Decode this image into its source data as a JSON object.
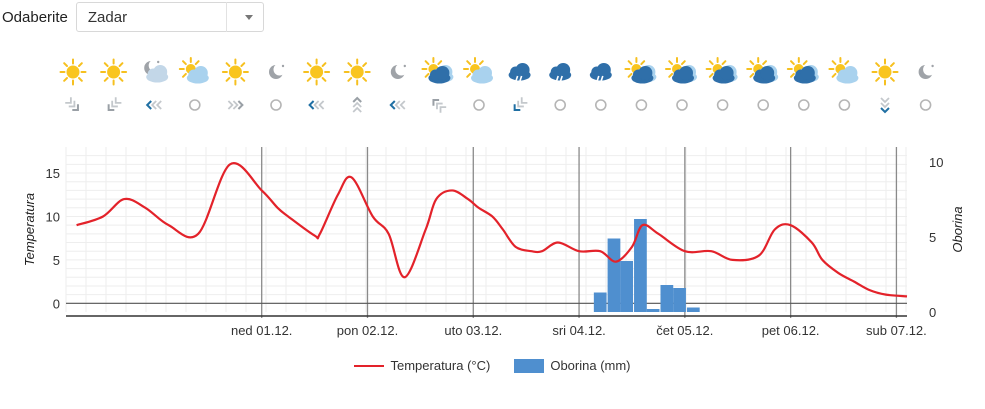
{
  "location_picker": {
    "label": "Odaberite",
    "selected": "Zadar"
  },
  "forecast_strip": {
    "weather_icons": [
      "sun-icon",
      "sun-icon",
      "moon-cloud-icon",
      "sun-cloud-icon",
      "sun-icon",
      "moon-icon",
      "sun-icon",
      "sun-icon",
      "moon-icon",
      "sun-cloud-dark-icon",
      "sun-cloud-icon",
      "rain-cloud-icon",
      "rain-cloud-icon",
      "rain-cloud-icon",
      "sun-cloud-dark-icon",
      "sun-cloud-dark-icon",
      "sun-cloud-dark-icon",
      "sun-cloud-dark-icon",
      "sun-cloud-dark-icon",
      "sun-cloud-icon",
      "sun-icon",
      "moon-icon"
    ],
    "wind_icons": [
      {
        "type": "arrow",
        "dir": "southeast",
        "strong": false
      },
      {
        "type": "arrow",
        "dir": "southwest",
        "strong": false
      },
      {
        "type": "arrow",
        "dir": "west",
        "strong": true
      },
      {
        "type": "calm"
      },
      {
        "type": "arrow",
        "dir": "east",
        "strong": false
      },
      {
        "type": "calm"
      },
      {
        "type": "arrow",
        "dir": "west",
        "strong": true
      },
      {
        "type": "arrow",
        "dir": "north",
        "strong": false
      },
      {
        "type": "arrow",
        "dir": "west",
        "strong": true
      },
      {
        "type": "arrow",
        "dir": "northwest",
        "strong": false
      },
      {
        "type": "calm"
      },
      {
        "type": "arrow",
        "dir": "southwest",
        "strong": true
      },
      {
        "type": "calm"
      },
      {
        "type": "calm"
      },
      {
        "type": "calm"
      },
      {
        "type": "calm"
      },
      {
        "type": "calm"
      },
      {
        "type": "calm"
      },
      {
        "type": "calm"
      },
      {
        "type": "calm"
      },
      {
        "type": "arrow",
        "dir": "south",
        "strong": true
      },
      {
        "type": "calm"
      }
    ]
  },
  "chart_data": {
    "type": "line",
    "left_axis": {
      "label": "Temperatura",
      "ticks": [
        0,
        5,
        10,
        15
      ],
      "range": [
        -1,
        18
      ]
    },
    "right_axis": {
      "label": "Oborina",
      "ticks": [
        0,
        5,
        10
      ],
      "range": [
        0,
        11
      ]
    },
    "day_labels": [
      "ned 01.12.",
      "pon 02.12.",
      "uto 03.12.",
      "sri 04.12.",
      "čet 05.12.",
      "pet 06.12.",
      "sub 07.12."
    ],
    "x_range": [
      -1.85,
      6.1
    ],
    "series": [
      {
        "name": "Temperatura (°C)",
        "kind": "line",
        "color": "#e3222a",
        "x": [
          -1.75,
          -1.5,
          -1.3,
          -1.1,
          -0.88,
          -0.6,
          -0.3,
          0,
          0.15,
          0.25,
          0.5,
          0.55,
          0.72,
          0.85,
          1.05,
          1.2,
          1.35,
          1.55,
          1.65,
          1.8,
          1.95,
          2.05,
          2.18,
          2.28,
          2.4,
          2.55,
          2.65,
          2.8,
          3.0,
          3.2,
          3.35,
          3.5,
          3.6,
          3.75,
          4.0,
          4.25,
          4.45,
          4.7,
          4.85,
          5.0,
          5.2,
          5.3,
          5.45,
          5.6,
          5.75,
          5.9,
          6.1
        ],
        "y": [
          9,
          10,
          12,
          11,
          9,
          8,
          16,
          13,
          11,
          10,
          7.8,
          8,
          12.5,
          14.5,
          10,
          8,
          3,
          8.5,
          12,
          13,
          12,
          11,
          10,
          8.5,
          6.5,
          6,
          6,
          7,
          6,
          6,
          4.8,
          6.5,
          9,
          8,
          6,
          6,
          5,
          5.5,
          8.5,
          9,
          7,
          5,
          3.5,
          2.5,
          1.5,
          1,
          0.8
        ]
      },
      {
        "name": "Oborina (mm)",
        "kind": "bar",
        "color": "#4f8fcf",
        "x": [
          3.2,
          3.33,
          3.45,
          3.58,
          3.7,
          3.83,
          3.95,
          4.08,
          4.2
        ],
        "y": [
          1.3,
          4.9,
          3.4,
          6.2,
          0.2,
          1.8,
          1.6,
          0.3,
          0
        ]
      }
    ],
    "grid": true,
    "legend_position": "bottom"
  }
}
